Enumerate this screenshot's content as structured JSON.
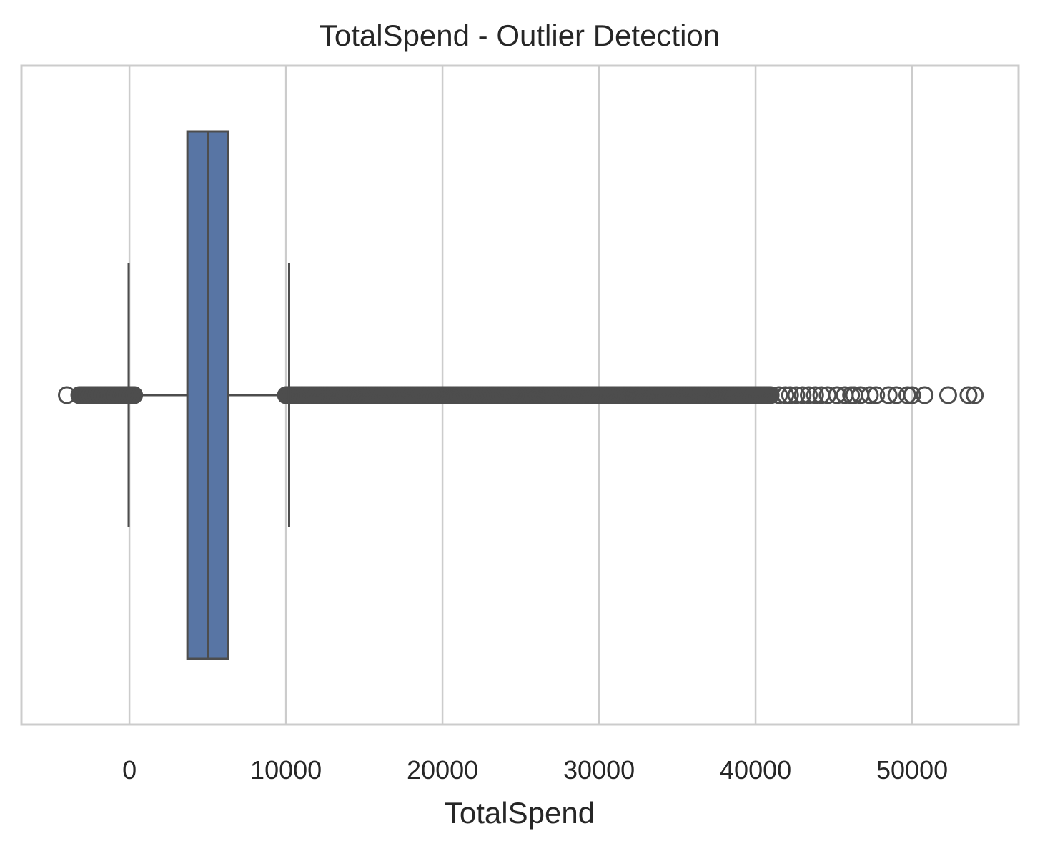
{
  "chart_data": {
    "type": "box",
    "orientation": "horizontal",
    "title": "TotalSpend - Outlier Detection",
    "xlabel": "TotalSpend",
    "ylabel": "",
    "xlim": [
      -6900,
      56800
    ],
    "xticks": [
      0,
      10000,
      20000,
      30000,
      40000,
      50000
    ],
    "xtick_labels": [
      "0",
      "10000",
      "20000",
      "30000",
      "40000",
      "50000"
    ],
    "grid": true,
    "box": {
      "whisker_low": -50,
      "q1": 3700,
      "median": 5000,
      "q3": 6300,
      "whisker_high": 10200,
      "fill": "#5875a4",
      "line_color": "#4d4d4d"
    },
    "outliers_low_range": [
      -3200,
      300
    ],
    "outliers_high_range": [
      10000,
      41000
    ],
    "outliers_low": [
      -4000,
      -3100,
      -2900,
      -2700,
      -2500,
      -2300,
      -2100,
      -1900,
      -1700,
      -1500,
      -1300,
      -1100,
      -900,
      -700,
      -500,
      -300,
      -100,
      100,
      300
    ],
    "outliers_high": [
      41500,
      41900,
      42200,
      42600,
      43000,
      43400,
      43800,
      44200,
      44600,
      45200,
      45700,
      46100,
      46300,
      46700,
      47300,
      47700,
      48500,
      49000,
      49700,
      50000,
      50800,
      52300,
      53600,
      54000
    ]
  }
}
